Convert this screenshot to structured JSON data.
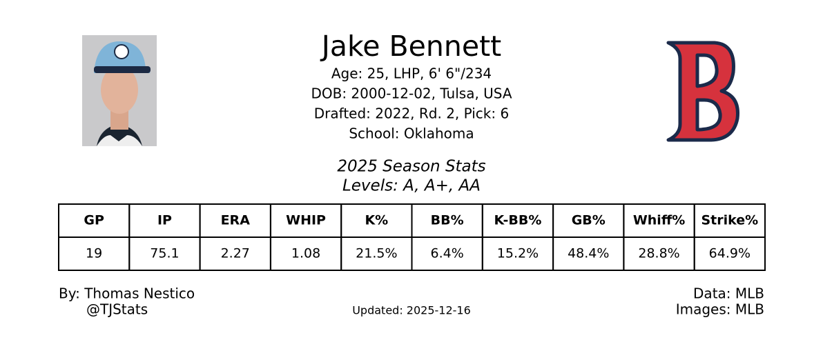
{
  "header": {
    "name": "Jake Bennett",
    "bio": [
      "Age: 25, LHP, 6' 6\"/234",
      "DOB: 2000-12-02, Tulsa, USA",
      "Drafted: 2022, Rd. 2, Pick: 6",
      "School: Oklahoma"
    ]
  },
  "section": {
    "title": "2025 Season Stats",
    "levels": "Levels: A, A+, AA"
  },
  "table": {
    "columns": [
      "GP",
      "IP",
      "ERA",
      "WHIP",
      "K%",
      "BB%",
      "K-BB%",
      "GB%",
      "Whiff%",
      "Strike%"
    ],
    "rows": [
      [
        "19",
        "75.1",
        "2.27",
        "1.08",
        "21.5%",
        "6.4%",
        "15.2%",
        "48.4%",
        "28.8%",
        "64.9%"
      ]
    ]
  },
  "footer": {
    "by": "By: Thomas Nestico",
    "handle": "@TJStats",
    "updated": "Updated: 2025-12-16",
    "data": "Data: MLB",
    "images": "Images: MLB"
  }
}
